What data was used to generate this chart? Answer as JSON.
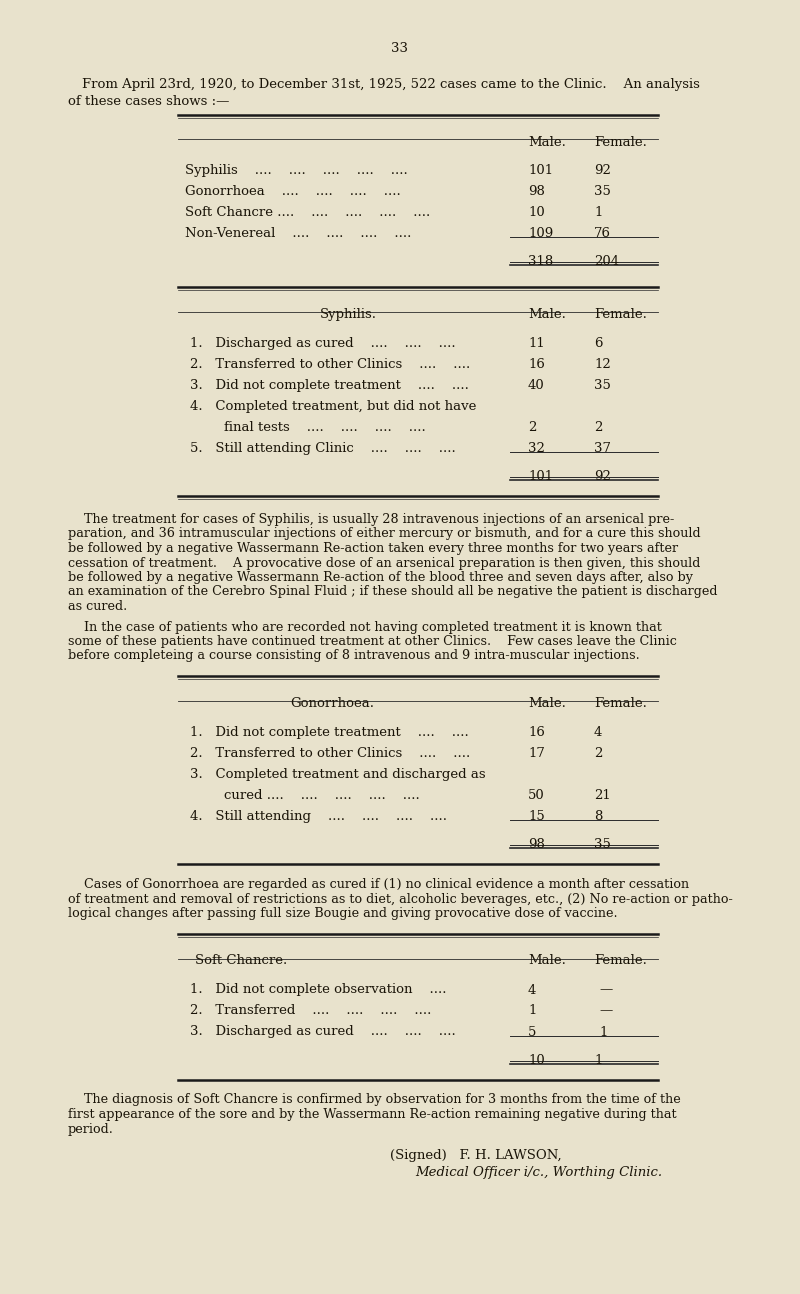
{
  "bg_color": "#e8e2cc",
  "text_color": "#1a1408",
  "page_number": "33",
  "intro_line1": "From April 23rd, 1920, to December 31st, 1925, 522 cases came to the Clinic.    An analysis",
  "intro_line2": "of these cases shows :—",
  "t1_col1": "Male.",
  "t1_col2": "Female.",
  "t1_rows": [
    [
      "Syphilis    ....    ....    ....    ....    ....",
      "101",
      "92"
    ],
    [
      "Gonorrhoea    ....    ....    ....    ....",
      "98",
      "35"
    ],
    [
      "Soft Chancre ....    ....    ....    ....    ....",
      "10",
      "1"
    ],
    [
      "Non-Venereal    ....    ....    ....    ....",
      "109",
      "76"
    ]
  ],
  "t1_total": [
    "318",
    "204"
  ],
  "t2_title": "Syphilis.",
  "t2_col1": "Male.",
  "t2_col2": "Female.",
  "t2_rows": [
    [
      "1.   Discharged as cured    ....    ....    ....",
      "11",
      "6"
    ],
    [
      "2.   Transferred to other Clinics    ....    ....",
      "16",
      "12"
    ],
    [
      "3.   Did not complete treatment    ....    ....",
      "40",
      "35"
    ],
    [
      "4.   Completed treatment, but did not have",
      "",
      ""
    ],
    [
      "        final tests    ....    ....    ....    ....",
      "2",
      "2"
    ],
    [
      "5.   Still attending Clinic    ....    ....    ....",
      "32",
      "37"
    ]
  ],
  "t2_total": [
    "101",
    "92"
  ],
  "para1_lines": [
    "    The treatment for cases of Syphilis, is usually 28 intravenous injections of an arsenical pre-",
    "paration, and 36 intramuscular injections of either mercury or bismuth, and for a cure this should",
    "be followed by a negative Wassermann Re-action taken every three months for two years after",
    "cessation of treatment.    A provocative dose of an arsenical preparation is then given, this should",
    "be followed by a negative Wassermann Re-action of the blood three and seven days after, also by",
    "an examination of the Cerebro Spinal Fluid ; if these should all be negative the patient is discharged",
    "as cured."
  ],
  "para2_lines": [
    "    In the case of patients who are recorded not having completed treatment it is known that",
    "some of these patients have continued treatment at other Clinics.    Few cases leave the Clinic",
    "before completeing a course consisting of 8 intravenous and 9 intra-muscular injections."
  ],
  "t3_title": "Gonorrhoea.",
  "t3_col1": "Male.",
  "t3_col2": "Female.",
  "t3_rows": [
    [
      "1.   Did not complete treatment    ....    ....",
      "16",
      "4"
    ],
    [
      "2.   Transferred to other Clinics    ....    ....",
      "17",
      "2"
    ],
    [
      "3.   Completed treatment and discharged as",
      "",
      ""
    ],
    [
      "        cured ....    ....    ....    ....    ....",
      "50",
      "21"
    ],
    [
      "4.   Still attending    ....    ....    ....    ....",
      "15",
      "8"
    ]
  ],
  "t3_total": [
    "98",
    "35"
  ],
  "para3_lines": [
    "    Cases of Gonorrhoea are regarded as cured if (1) no clinical evidence a month after cessation",
    "of treatment and removal of restrictions as to diet, alcoholic beverages, etc., (2) No re-action or patho-",
    "logical changes after passing full size Bougie and giving provocative dose of vaccine."
  ],
  "t4_title": "Soft Chancre.",
  "t4_col1": "Male.",
  "t4_col2": "Female.",
  "t4_rows": [
    [
      "1.   Did not complete observation    ....",
      "4",
      "—"
    ],
    [
      "2.   Transferred    ....    ....    ....    ....",
      "1",
      "—"
    ],
    [
      "3.   Discharged as cured    ....    ....    ....",
      "5",
      "1"
    ]
  ],
  "t4_total": [
    "10",
    "1"
  ],
  "para4_lines": [
    "    The diagnosis of Soft Chancre is confirmed by observation for 3 months from the time of the",
    "first appearance of the sore and by the Wassermann Re-action remaining negative during that",
    "period."
  ],
  "signed": "(Signed)   F. H. LAWSON,",
  "role": "Medical Officer i/c., Worthing Clinic."
}
